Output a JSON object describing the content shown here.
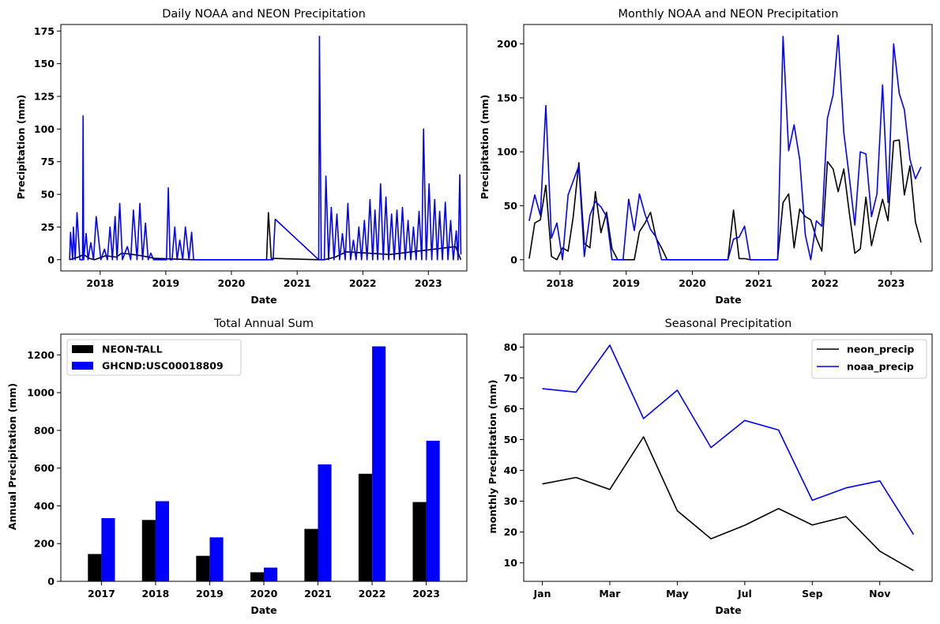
{
  "colors": {
    "neon": "#000000",
    "noaa": "#0000ff"
  },
  "chart_data": [
    {
      "type": "line",
      "title": "Daily NOAA and NEON Precipitation",
      "xlabel": "Date",
      "ylabel": "Precipitation (mm)",
      "x_ticks": [
        "2018",
        "2019",
        "2020",
        "2021",
        "2022",
        "2023"
      ],
      "y_ticks": [
        0,
        25,
        50,
        75,
        100,
        125,
        150,
        175
      ],
      "xlim": [
        "2017-05-27",
        "2023-08-03"
      ],
      "ylim": [
        -8.6,
        180
      ],
      "series": [
        {
          "key": "neon",
          "x": [
            "2017-07-15",
            "2017-09-01",
            "2017-10-01",
            "2017-11-01",
            "2017-12-01",
            "2018-02-01",
            "2018-04-01",
            "2018-05-01",
            "2018-07-01",
            "2018-08-20",
            "2018-11-01",
            "2019-06-01",
            "2020-07-15",
            "2020-07-25",
            "2020-08-10",
            "2021-05-01",
            "2021-06-01",
            "2021-08-01",
            "2021-10-01",
            "2022-06-01",
            "2023-06-01",
            "2023-07-01"
          ],
          "y": [
            0,
            2,
            4,
            1,
            0,
            3,
            2,
            5,
            4,
            3,
            1,
            0,
            0,
            36,
            1,
            0,
            0,
            2,
            6,
            4,
            10,
            0
          ]
        },
        {
          "key": "noaa",
          "x": [
            "2017-07-15",
            "2017-07-20",
            "2017-07-25",
            "2017-08-01",
            "2017-08-05",
            "2017-08-15",
            "2017-08-25",
            "2017-09-10",
            "2017-09-25",
            "2017-09-28",
            "2017-10-01",
            "2017-10-15",
            "2017-10-25",
            "2017-11-10",
            "2017-11-25",
            "2017-12-10",
            "2018-01-05",
            "2018-01-25",
            "2018-02-10",
            "2018-02-25",
            "2018-03-10",
            "2018-03-25",
            "2018-04-05",
            "2018-04-20",
            "2018-05-05",
            "2018-06-01",
            "2018-06-20",
            "2018-07-05",
            "2018-07-25",
            "2018-08-10",
            "2018-08-25",
            "2018-09-10",
            "2018-09-25",
            "2018-10-10",
            "2018-10-25",
            "2018-11-15",
            "2018-12-20",
            "2019-01-05",
            "2019-01-15",
            "2019-01-25",
            "2019-02-05",
            "2019-02-20",
            "2019-03-05",
            "2019-03-20",
            "2019-04-05",
            "2019-04-20",
            "2019-05-10",
            "2019-05-25",
            "2019-06-05",
            "2020-08-20",
            "2020-09-01",
            "2021-05-01",
            "2021-05-05",
            "2021-05-15",
            "2021-06-01",
            "2021-06-10",
            "2021-06-25",
            "2021-07-10",
            "2021-07-25",
            "2021-08-10",
            "2021-08-25",
            "2021-09-10",
            "2021-09-25",
            "2021-10-10",
            "2021-10-25",
            "2021-11-10",
            "2021-11-25",
            "2021-12-10",
            "2021-12-25",
            "2022-01-10",
            "2022-01-25",
            "2022-02-10",
            "2022-02-25",
            "2022-03-10",
            "2022-03-25",
            "2022-04-10",
            "2022-04-25",
            "2022-05-10",
            "2022-05-25",
            "2022-06-10",
            "2022-06-25",
            "2022-07-10",
            "2022-07-25",
            "2022-08-10",
            "2022-08-25",
            "2022-09-10",
            "2022-09-25",
            "2022-10-10",
            "2022-10-25",
            "2022-11-10",
            "2022-11-25",
            "2022-12-05",
            "2022-12-20",
            "2023-01-05",
            "2023-01-20",
            "2023-02-05",
            "2023-02-20",
            "2023-03-05",
            "2023-03-20",
            "2023-04-05",
            "2023-04-20",
            "2023-05-05",
            "2023-05-20",
            "2023-06-05",
            "2023-06-15",
            "2023-06-25",
            "2023-07-01"
          ],
          "y": [
            0,
            21,
            12,
            0,
            25,
            0,
            36,
            0,
            0,
            110,
            0,
            20,
            0,
            13,
            0,
            33,
            0,
            8,
            0,
            25,
            0,
            33,
            0,
            43,
            0,
            10,
            0,
            38,
            0,
            43,
            0,
            28,
            0,
            5,
            0,
            0,
            0,
            0,
            55,
            0,
            0,
            25,
            0,
            15,
            0,
            25,
            0,
            21,
            0,
            0,
            31,
            0,
            171,
            0,
            0,
            64,
            0,
            40,
            0,
            35,
            0,
            20,
            0,
            43,
            0,
            15,
            0,
            25,
            0,
            30,
            0,
            46,
            0,
            38,
            0,
            58,
            0,
            48,
            0,
            35,
            0,
            38,
            0,
            40,
            0,
            30,
            0,
            25,
            0,
            37,
            0,
            100,
            0,
            58,
            0,
            46,
            0,
            37,
            0,
            44,
            0,
            30,
            0,
            22,
            0,
            65,
            4
          ]
        }
      ]
    },
    {
      "type": "line",
      "title": "Monthly NOAA and NEON Precipitation",
      "xlabel": "Date",
      "ylabel": "Precipitation (mm)",
      "x_ticks": [
        "2018",
        "2019",
        "2020",
        "2021",
        "2022",
        "2023"
      ],
      "y_ticks": [
        0,
        50,
        100,
        150,
        200
      ],
      "xlim": [
        "2017-06-15",
        "2023-08-15"
      ],
      "ylim": [
        -10.4,
        218
      ],
      "x": [
        "2017-07",
        "2017-08",
        "2017-09",
        "2017-10",
        "2017-11",
        "2017-12",
        "2018-01",
        "2018-02",
        "2018-03",
        "2018-04",
        "2018-05",
        "2018-06",
        "2018-07",
        "2018-08",
        "2018-09",
        "2018-10",
        "2018-11",
        "2018-12",
        "2019-01",
        "2019-02",
        "2019-03",
        "2019-04",
        "2019-05",
        "2019-06",
        "2019-07",
        "2019-08",
        "2019-09",
        "2019-10",
        "2019-11",
        "2019-12",
        "2020-01",
        "2020-02",
        "2020-03",
        "2020-04",
        "2020-05",
        "2020-06",
        "2020-07",
        "2020-08",
        "2020-09",
        "2020-10",
        "2020-11",
        "2020-12",
        "2021-01",
        "2021-02",
        "2021-03",
        "2021-04",
        "2021-05",
        "2021-06",
        "2021-07",
        "2021-08",
        "2021-09",
        "2021-10",
        "2021-11",
        "2021-12",
        "2022-01",
        "2022-02",
        "2022-03",
        "2022-04",
        "2022-05",
        "2022-06",
        "2022-07",
        "2022-08",
        "2022-09",
        "2022-10",
        "2022-11",
        "2022-12",
        "2023-01",
        "2023-02",
        "2023-03",
        "2023-04",
        "2023-05",
        "2023-06"
      ],
      "series": [
        {
          "key": "neon",
          "values": [
            1,
            34,
            37,
            69,
            3,
            0,
            11,
            8,
            40,
            90,
            15,
            11,
            63,
            25,
            44,
            10,
            0,
            0,
            0,
            0,
            26,
            34,
            44,
            20,
            11,
            0,
            0,
            0,
            0,
            0,
            0,
            0,
            0,
            0,
            0,
            0,
            0,
            46,
            1,
            1,
            0,
            0,
            0,
            0,
            0,
            0,
            53,
            61,
            11,
            47,
            40,
            37,
            20,
            8,
            91,
            84,
            63,
            84,
            44,
            6,
            10,
            58,
            13,
            35,
            56,
            36,
            110,
            111,
            60,
            87,
            35,
            16
          ]
        },
        {
          "key": "noaa",
          "values": [
            36,
            60,
            41,
            143,
            20,
            34,
            0,
            60,
            73,
            87,
            3,
            41,
            54,
            49,
            40,
            0,
            0,
            0,
            56,
            27,
            61,
            42,
            28,
            21,
            0,
            0,
            0,
            0,
            0,
            0,
            0,
            0,
            0,
            0,
            0,
            0,
            0,
            19,
            21,
            31,
            0,
            0,
            0,
            0,
            0,
            0,
            207,
            101,
            125,
            93,
            23,
            0,
            36,
            31,
            131,
            153,
            208,
            118,
            77,
            32,
            100,
            98,
            40,
            61,
            162,
            53,
            200,
            154,
            139,
            93,
            75,
            86
          ]
        }
      ]
    },
    {
      "type": "bar",
      "title": "Total Annual Sum",
      "xlabel": "Date",
      "ylabel": "Annual Precipitation (mm)",
      "categories": [
        "2017",
        "2018",
        "2019",
        "2020",
        "2021",
        "2022",
        "2023"
      ],
      "y_ticks": [
        0,
        200,
        400,
        600,
        800,
        1000,
        1200
      ],
      "ylim": [
        0,
        1310
      ],
      "legend_position": "top-left",
      "series": [
        {
          "key": "neon",
          "name": "NEON-TALL",
          "values": [
            145,
            325,
            135,
            48,
            278,
            570,
            420
          ]
        },
        {
          "key": "noaa",
          "name": "GHCND:USC00018809",
          "values": [
            335,
            425,
            233,
            73,
            620,
            1245,
            745
          ]
        }
      ]
    },
    {
      "type": "line",
      "title": "Seasonal Precipitation",
      "xlabel": "Date",
      "ylabel": "monthly Precipitation (mm)",
      "x_ticks": [
        "Jan",
        "Mar",
        "May",
        "Jul",
        "Sep",
        "Nov"
      ],
      "y_ticks": [
        10,
        20,
        30,
        40,
        50,
        60,
        70,
        80
      ],
      "ylim": [
        4.0,
        84.2
      ],
      "legend_position": "top-right",
      "series": [
        {
          "key": "neon",
          "name": "neon_precip",
          "values": [
            35.6,
            37.7,
            33.8,
            50.9,
            26.9,
            17.8,
            22.2,
            27.6,
            22.3,
            25.0,
            13.8,
            7.5
          ]
        },
        {
          "key": "noaa",
          "name": "noaa_precip",
          "values": [
            66.5,
            65.4,
            80.6,
            56.8,
            66.0,
            47.4,
            56.2,
            53.1,
            30.3,
            34.3,
            36.6,
            19.2
          ]
        }
      ]
    }
  ]
}
